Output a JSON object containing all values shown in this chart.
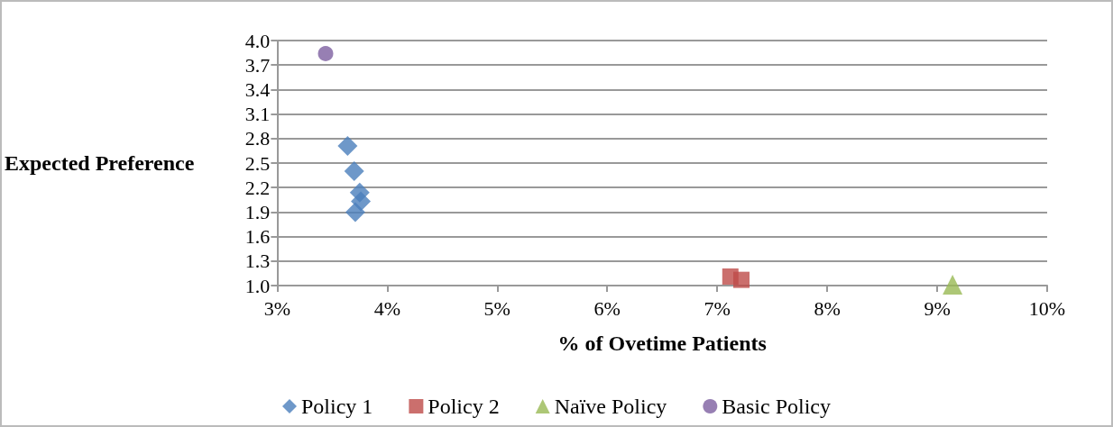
{
  "chart_data": {
    "type": "scatter",
    "xlabel": "% of Ovetime Patients",
    "ylabel": "Expected Preference",
    "series": [
      {
        "name": "Policy 1",
        "color": "#4a7ebb",
        "marker": "diamond",
        "x": [
          3.64,
          3.7,
          3.75,
          3.76,
          3.71
        ],
        "values": [
          2.71,
          2.4,
          2.14,
          2.03,
          1.9
        ]
      },
      {
        "name": "Policy 2",
        "color": "#be4b48",
        "marker": "square",
        "x": [
          7.12,
          7.22
        ],
        "values": [
          1.11,
          1.07
        ]
      },
      {
        "name": "Naïve Policy",
        "color": "#98b954",
        "marker": "triangle",
        "x": [
          9.14
        ],
        "values": [
          1.01
        ]
      },
      {
        "name": "Basic Policy",
        "color": "#7d5fa0",
        "marker": "circle",
        "x": [
          3.44
        ],
        "values": [
          3.84
        ]
      }
    ],
    "xlim": [
      3,
      10
    ],
    "xticks": [
      {
        "value": 3,
        "label": "3%"
      },
      {
        "value": 4,
        "label": "4%"
      },
      {
        "value": 5,
        "label": "5%"
      },
      {
        "value": 6,
        "label": "6%"
      },
      {
        "value": 7,
        "label": "7%"
      },
      {
        "value": 8,
        "label": "8%"
      },
      {
        "value": 9,
        "label": "9%"
      },
      {
        "value": 10,
        "label": "10%"
      }
    ],
    "ylim": [
      1,
      4
    ],
    "yticks": [
      {
        "value": 1,
        "label": "1.0"
      },
      {
        "value": 1.3,
        "label": "1.3"
      },
      {
        "value": 1.6,
        "label": "1.6"
      },
      {
        "value": 1.9,
        "label": "1.9"
      },
      {
        "value": 2.2,
        "label": "2.2"
      },
      {
        "value": 2.5,
        "label": "2.5"
      },
      {
        "value": 2.8,
        "label": "2.8"
      },
      {
        "value": 3.1,
        "label": "3.1"
      },
      {
        "value": 3.4,
        "label": "3.4"
      },
      {
        "value": 3.7,
        "label": "3.7"
      },
      {
        "value": 4,
        "label": "4.0"
      }
    ],
    "grid": "y",
    "legend": "bottom"
  }
}
